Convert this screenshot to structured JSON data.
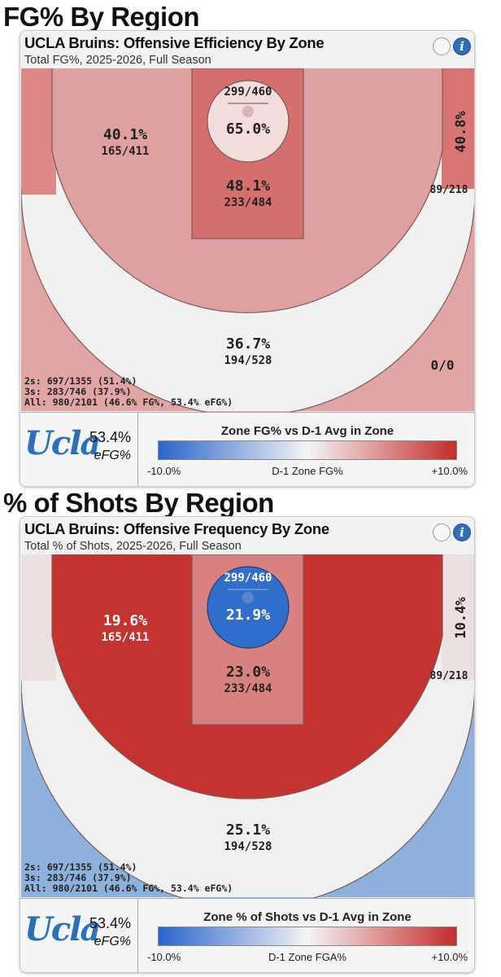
{
  "charts": [
    {
      "section_title": "FG% By Region",
      "title": "UCLA Bruins: Offensive Efficiency By Zone",
      "subtitle": "Total FG%, 2025-2026, Full Season",
      "colors": {
        "left_corner": "#de8887",
        "left_wing": "#dfa0a0",
        "right_corner": "#d97574",
        "paint": "#d56f6e",
        "rim": "#f3dcdc",
        "top_three": "#e1a5a4",
        "right_wing": "#f0f0f0"
      },
      "zones": {
        "left_wing": {
          "pct": "40.1%",
          "made_att": "165/411"
        },
        "rim": {
          "made_att": "299/460",
          "pct": "65.0%"
        },
        "right_corner": {
          "pct": "40.8%",
          "made_att": "89/218"
        },
        "paint": {
          "pct": "48.1%",
          "made_att": "233/484"
        },
        "top_three": {
          "pct": "36.7%",
          "made_att": "194/528"
        },
        "right_wing": {
          "made_att": "0/0"
        }
      },
      "stats": {
        "twos": "2s: 697/1355 (51.4%)",
        "threes": "3s: 283/746 (37.9%)",
        "all": "All: 980/2101 (46.6% FG%, 53.4% eFG%)"
      },
      "logo": "Ucla",
      "efg_value": "53.4%",
      "efg_label": "eFG%",
      "legend": {
        "title": "Zone FG% vs D-1 Avg in Zone",
        "min": "-10.0%",
        "max": "+10.0%",
        "axis_label": "D-1 Zone FG%"
      }
    },
    {
      "section_title": "% of Shots By Region",
      "title": "UCLA Bruins: Offensive Frequency By Zone",
      "subtitle": "Total % of Shots, 2025-2026, Full Season",
      "colors": {
        "left_corner": "#ecdfdf",
        "left_wing": "#c53331",
        "right_corner": "#ecdfdf",
        "paint": "#d98180",
        "rim": "#2f6fcb",
        "top_three": "#8eb0dc",
        "right_wing": "#f0f0f0"
      },
      "zones": {
        "left_wing": {
          "pct": "19.6%",
          "made_att": "165/411"
        },
        "rim": {
          "made_att": "299/460",
          "pct": "21.9%"
        },
        "right_corner": {
          "pct": "10.4%",
          "made_att": "89/218"
        },
        "paint": {
          "pct": "23.0%",
          "made_att": "233/484"
        },
        "top_three": {
          "pct": "25.1%",
          "made_att": "194/528"
        }
      },
      "stats": {
        "twos": "2s: 697/1355 (51.4%)",
        "threes": "3s: 283/746 (37.9%)",
        "all": "All: 980/2101 (46.6% FG%, 53.4% eFG%)"
      },
      "logo": "Ucla",
      "efg_value": "53.4%",
      "efg_label": "eFG%",
      "legend": {
        "title": "Zone % of Shots vs D-1 Avg in Zone",
        "min": "-10.0%",
        "max": "+10.0%",
        "axis_label": "D-1 Zone FGA%"
      }
    }
  ],
  "chart_data": [
    {
      "type": "heatmap",
      "title": "UCLA Bruins: Offensive Efficiency By Zone",
      "metric": "FG%",
      "zones": [
        {
          "zone": "Left Wing 3 / Mid-range",
          "fg_pct": 40.1,
          "made": 165,
          "attempts": 411
        },
        {
          "zone": "At Rim",
          "fg_pct": 65.0,
          "made": 299,
          "attempts": 460
        },
        {
          "zone": "Right Corner",
          "fg_pct": 40.8,
          "made": 89,
          "attempts": 218
        },
        {
          "zone": "Paint",
          "fg_pct": 48.1,
          "made": 233,
          "attempts": 484
        },
        {
          "zone": "Top 3",
          "fg_pct": 36.7,
          "made": 194,
          "attempts": 528
        },
        {
          "zone": "Right Wing",
          "made": 0,
          "attempts": 0
        }
      ],
      "color_scale": {
        "label": "D-1 Zone FG%",
        "min": -10.0,
        "max": 10.0
      }
    },
    {
      "type": "heatmap",
      "title": "UCLA Bruins: Offensive Frequency By Zone",
      "metric": "% of Shots",
      "zones": [
        {
          "zone": "Left Wing 3 / Mid-range",
          "shot_pct": 19.6,
          "made": 165,
          "attempts": 411
        },
        {
          "zone": "At Rim",
          "shot_pct": 21.9,
          "made": 299,
          "attempts": 460
        },
        {
          "zone": "Right Corner",
          "shot_pct": 10.4,
          "made": 89,
          "attempts": 218
        },
        {
          "zone": "Paint",
          "shot_pct": 23.0,
          "made": 233,
          "attempts": 484
        },
        {
          "zone": "Top 3",
          "shot_pct": 25.1,
          "made": 194,
          "attempts": 528
        }
      ],
      "color_scale": {
        "label": "D-1 Zone FGA%",
        "min": -10.0,
        "max": 10.0
      }
    }
  ]
}
